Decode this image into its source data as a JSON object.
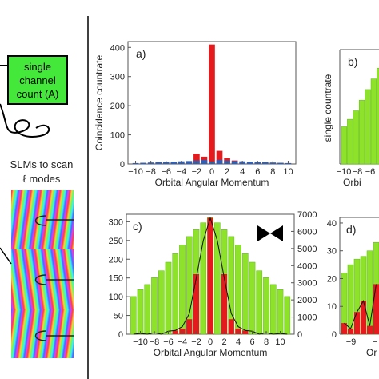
{
  "setup": {
    "box_lines": [
      "single",
      "channel",
      "count (A)"
    ],
    "slm_caption_lines": [
      "SLMs to scan",
      "ℓ modes"
    ]
  },
  "colors": {
    "red": "#e41a1c",
    "blue": "#2f5fb7",
    "green": "#8fe22a",
    "green_dark": "#5fb81a",
    "box_green": "#44e83a"
  },
  "chart_data": [
    {
      "panel": "a)",
      "type": "bar",
      "ylabel": "Coincidence countrate",
      "xlabel": "Orbital Angular Momentum",
      "ylim": [
        0,
        420
      ],
      "yticks": [
        0,
        100,
        200,
        300,
        400
      ],
      "xtick_labels": [
        "−10",
        "−8",
        "−6",
        "−4",
        "−2",
        "0",
        "2",
        "4",
        "6",
        "8",
        "10"
      ],
      "x": [
        -10,
        -9,
        -8,
        -7,
        -6,
        -5,
        -4,
        -3,
        -2,
        -1,
        0,
        1,
        2,
        3,
        4,
        5,
        6,
        7,
        8,
        9,
        10
      ],
      "series": [
        {
          "color": "red",
          "values": [
            1,
            1,
            2,
            2,
            3,
            3,
            4,
            6,
            35,
            25,
            410,
            45,
            20,
            12,
            8,
            5,
            4,
            3,
            2,
            1,
            1
          ]
        },
        {
          "color": "blue",
          "values": [
            3,
            4,
            5,
            6,
            7,
            8,
            9,
            10,
            12,
            14,
            8,
            14,
            12,
            10,
            9,
            8,
            7,
            6,
            5,
            4,
            3
          ]
        }
      ]
    },
    {
      "panel": "b)",
      "type": "bar",
      "ylabel": "single countrate",
      "xtick_labels": [
        "−10",
        "−8",
        "−6"
      ],
      "xlabel": "Orbi",
      "series": [
        {
          "color": "green",
          "values": [
            0.35,
            0.42,
            0.5,
            0.6,
            0.7,
            0.8,
            0.9,
            0.95
          ]
        }
      ]
    },
    {
      "panel": "c)",
      "type": "bar",
      "xlabel": "Orbital Angular Momentum",
      "ylim_left": [
        0,
        320
      ],
      "yticks_left": [
        0,
        50,
        100,
        150,
        200,
        250,
        300
      ],
      "ylim_right": [
        0,
        7000
      ],
      "yticks_right": [
        0,
        1000,
        2000,
        3000,
        4000,
        5000,
        6000,
        7000
      ],
      "xtick_labels": [
        "−10",
        "−8",
        "−6",
        "−4",
        "−2",
        "0",
        "2",
        "4",
        "6",
        "8",
        "10"
      ],
      "x": [
        -11,
        -10,
        -9,
        -8,
        -7,
        -6,
        -5,
        -4,
        -3,
        -2,
        -1,
        0,
        1,
        2,
        3,
        4,
        5,
        6,
        7,
        8,
        9,
        10,
        11
      ],
      "series": [
        {
          "color": "green",
          "axis": "right",
          "values": [
            2200,
            2600,
            2900,
            3300,
            3700,
            4200,
            4700,
            5200,
            5700,
            6100,
            6500,
            6800,
            6500,
            6100,
            5700,
            5200,
            4700,
            4200,
            3700,
            3300,
            2900,
            2600,
            2200
          ]
        },
        {
          "color": "red",
          "axis": "left",
          "values": [
            0,
            0,
            0,
            0,
            0,
            0,
            10,
            15,
            40,
            160,
            0,
            310,
            0,
            160,
            40,
            15,
            10,
            0,
            0,
            0,
            0,
            0,
            0
          ]
        },
        {
          "color": "black",
          "type": "line",
          "axis": "left",
          "values": [
            0,
            2,
            0,
            4,
            0,
            8,
            10,
            20,
            55,
            150,
            250,
            310,
            250,
            150,
            55,
            20,
            10,
            8,
            0,
            4,
            0,
            2,
            0
          ]
        }
      ]
    },
    {
      "panel": "d)",
      "type": "bar",
      "ylim_left": [
        0,
        42
      ],
      "yticks_left": [
        0,
        10,
        20,
        30,
        40
      ],
      "xtick_labels": [
        "−9",
        "−"
      ],
      "xlabel": "Or",
      "series": [
        {
          "color": "green",
          "values": [
            22,
            25,
            27,
            28,
            30,
            33
          ]
        },
        {
          "color": "red",
          "values": [
            4,
            2,
            8,
            12,
            3,
            18
          ]
        }
      ]
    }
  ]
}
